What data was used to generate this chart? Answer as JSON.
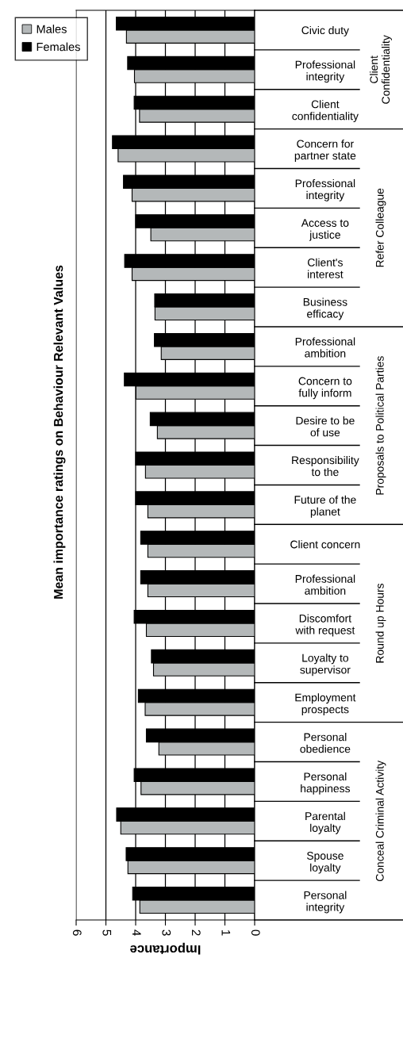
{
  "chart_data": {
    "type": "bar",
    "orientation": "horizontal",
    "title": "Mean importance ratings on Behaviour Relevant Values",
    "xlabel": "Importance",
    "categories": [
      "Civic duty",
      "Professional\nintegrity",
      "Client\nconfidentiality",
      "Concern for\npartner state",
      "Professional\nintegrity",
      "Access to\njustice",
      "Client's\ninterest",
      "Business\nefficacy",
      "Professional\nambition",
      "Concern to\nfully inform",
      "Desire to be\nof use",
      "Responsibility\nto the",
      "Future of the\nplanet",
      "Client concern",
      "Professional\nambition",
      "Discomfort\nwith request",
      "Loyalty to\nsupervisor",
      "Employment\nprospects",
      "Personal\nobedience",
      "Personal\nhappiness",
      "Parental\nloyalty",
      "Spouse\nloyalty",
      "Personal\nintegrity"
    ],
    "series": [
      {
        "name": "Males",
        "color": "#b4b8b9",
        "values": [
          4.31,
          4.04,
          3.87,
          4.59,
          4.12,
          3.49,
          4.12,
          3.35,
          3.14,
          3.99,
          3.27,
          3.67,
          3.59,
          3.59,
          3.59,
          3.64,
          3.4,
          3.68,
          3.22,
          3.82,
          4.5,
          4.26,
          3.86
        ]
      },
      {
        "name": "Females",
        "color": "#000000",
        "values": [
          4.65,
          4.27,
          4.05,
          4.78,
          4.41,
          4.0,
          4.37,
          3.36,
          3.37,
          4.38,
          3.51,
          4.0,
          4.0,
          3.83,
          3.83,
          4.05,
          3.47,
          3.91,
          3.64,
          4.05,
          4.64,
          4.32,
          4.1
        ]
      }
    ],
    "xlim": [
      6,
      0
    ],
    "xticks": [
      6,
      5,
      4,
      3,
      2,
      1,
      0
    ],
    "grid": "x",
    "legend": "top left",
    "annotations": [
      "Client\nConfidentiality",
      "Refer Colleague",
      "Proposals to Political Parties",
      "Round up Hours",
      "Conceal Criminal Activity"
    ]
  }
}
